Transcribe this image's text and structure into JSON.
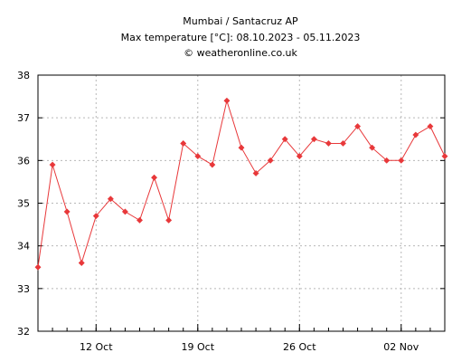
{
  "chart_data": {
    "type": "line",
    "title": "Mumbai / Santacruz AP",
    "subtitle": "Max temperature [°C]: 08.10.2023 - 05.11.2023",
    "credit": "© weatheronline.co.uk",
    "xlabel": "",
    "ylabel": "",
    "ylim": [
      32,
      38
    ],
    "yticks": [
      32,
      33,
      34,
      35,
      36,
      37,
      38
    ],
    "xlim": [
      "2023-10-08",
      "2023-11-05"
    ],
    "xticks": [
      {
        "date": "2023-10-12",
        "label": "12 Oct"
      },
      {
        "date": "2023-10-19",
        "label": "19 Oct"
      },
      {
        "date": "2023-10-26",
        "label": "26 Oct"
      },
      {
        "date": "2023-11-02",
        "label": "02 Nov"
      }
    ],
    "grid": true,
    "series": [
      {
        "color": "#e8383a",
        "points": [
          {
            "x": "2023-10-08",
            "y": 33.5
          },
          {
            "x": "2023-10-09",
            "y": 35.9
          },
          {
            "x": "2023-10-10",
            "y": 34.8
          },
          {
            "x": "2023-10-11",
            "y": 33.6
          },
          {
            "x": "2023-10-12",
            "y": 34.7
          },
          {
            "x": "2023-10-13",
            "y": 35.1
          },
          {
            "x": "2023-10-14",
            "y": 34.8
          },
          {
            "x": "2023-10-15",
            "y": 34.6
          },
          {
            "x": "2023-10-16",
            "y": 35.6
          },
          {
            "x": "2023-10-17",
            "y": 34.6
          },
          {
            "x": "2023-10-18",
            "y": 36.4
          },
          {
            "x": "2023-10-19",
            "y": 36.1
          },
          {
            "x": "2023-10-20",
            "y": 35.9
          },
          {
            "x": "2023-10-21",
            "y": 37.4
          },
          {
            "x": "2023-10-22",
            "y": 36.3
          },
          {
            "x": "2023-10-23",
            "y": 35.7
          },
          {
            "x": "2023-10-24",
            "y": 36.0
          },
          {
            "x": "2023-10-25",
            "y": 36.5
          },
          {
            "x": "2023-10-26",
            "y": 36.1
          },
          {
            "x": "2023-10-27",
            "y": 36.5
          },
          {
            "x": "2023-10-28",
            "y": 36.4
          },
          {
            "x": "2023-10-29",
            "y": 36.4
          },
          {
            "x": "2023-10-30",
            "y": 36.8
          },
          {
            "x": "2023-10-31",
            "y": 36.3
          },
          {
            "x": "2023-11-01",
            "y": 36.0
          },
          {
            "x": "2023-11-02",
            "y": 36.0
          },
          {
            "x": "2023-11-03",
            "y": 36.6
          },
          {
            "x": "2023-11-04",
            "y": 36.8
          },
          {
            "x": "2023-11-05",
            "y": 36.1
          }
        ]
      }
    ]
  }
}
